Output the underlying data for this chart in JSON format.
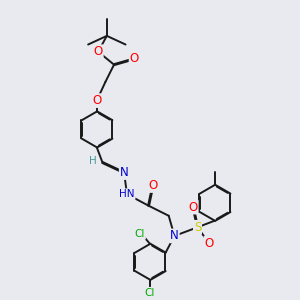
{
  "bg": "#e8eaf0",
  "bond_color": "#1a1a1a",
  "O_color": "#ff0000",
  "N_color": "#0000cc",
  "S_color": "#cccc00",
  "Cl_color": "#00aa00",
  "H_color": "#4a9a9a",
  "lw": 1.4,
  "dbo": 0.018,
  "fs": 8.5,
  "fss": 7.5,
  "figsize": [
    3.0,
    3.0
  ],
  "dpi": 100,
  "xlim": [
    0.0,
    10.0
  ],
  "ylim": [
    0.0,
    10.0
  ]
}
